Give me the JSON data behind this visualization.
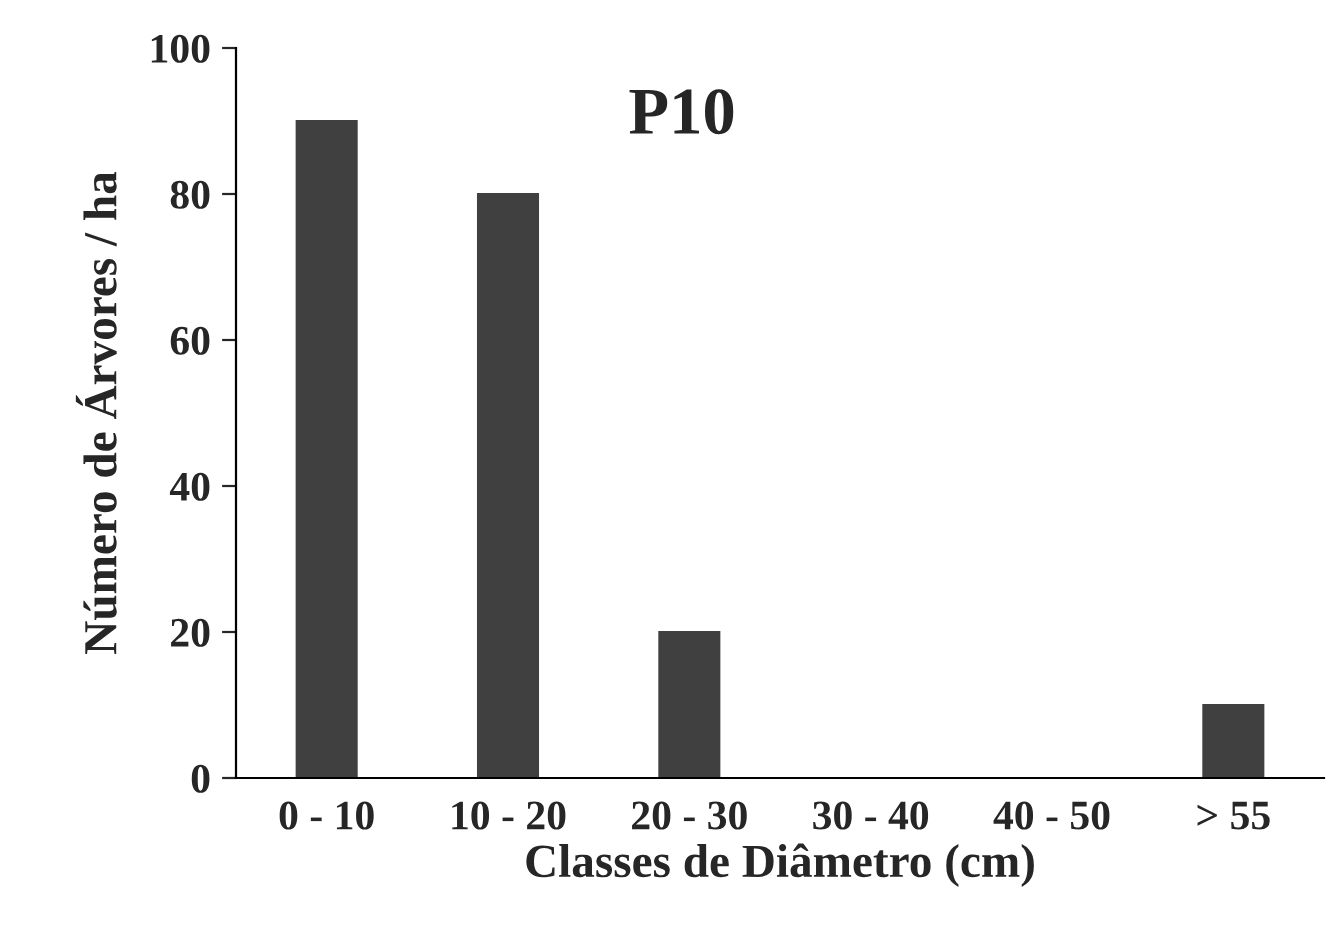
{
  "chart_data": {
    "type": "bar",
    "title": "P10",
    "xlabel": "Classes de Diâmetro (cm)",
    "ylabel": "Número de Árvores / ha",
    "categories": [
      "0 - 10",
      "10 - 20",
      "20 - 30",
      "30 - 40",
      "40 - 50",
      "> 55"
    ],
    "values": [
      90,
      80,
      20,
      0,
      0,
      10
    ],
    "color": "#404040",
    "ylim": [
      0,
      100
    ],
    "yticks": [
      0,
      20,
      40,
      60,
      80,
      100
    ],
    "grid": false,
    "legend": false
  }
}
